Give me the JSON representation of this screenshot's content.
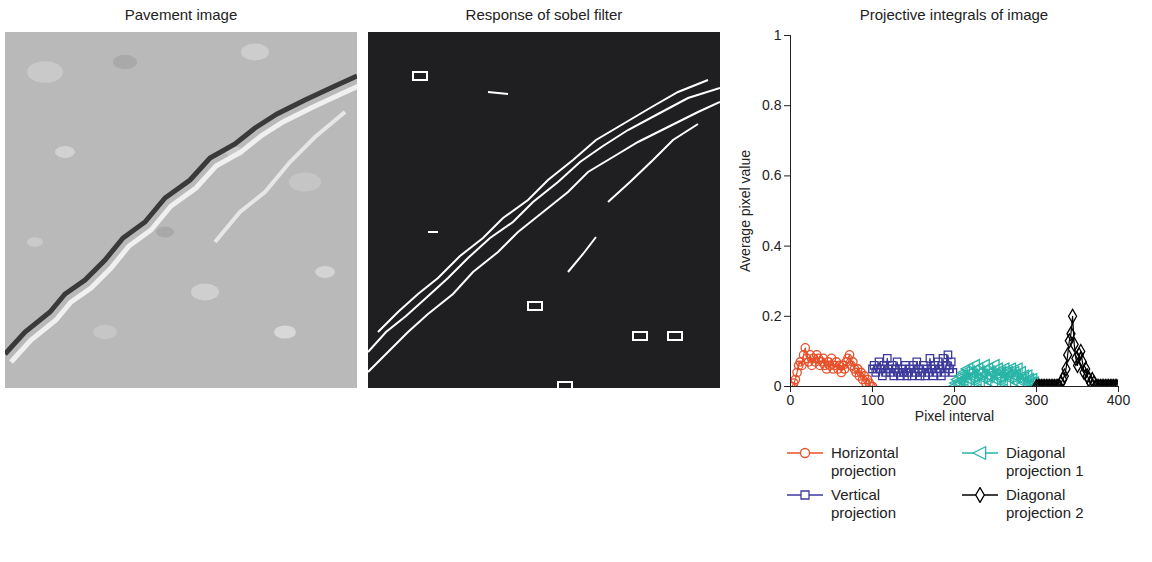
{
  "images": [
    {
      "title": "Pavement image"
    },
    {
      "title": "Response of sobel filter"
    }
  ],
  "chart_data": {
    "type": "line",
    "title": "Projective integrals of image",
    "x_label": "Pixel interval",
    "y_label": "Average pixel value",
    "xlim": [
      0,
      400
    ],
    "xticks": [
      0,
      100,
      200,
      300,
      400
    ],
    "ylim": [
      0,
      1
    ],
    "yticks": [
      0,
      0.2,
      0.4,
      0.6,
      0.8,
      1
    ],
    "legend": "bottom",
    "series": [
      {
        "name": "Horizontal projection",
        "color": "#e8502a",
        "marker": "circle",
        "line_style": "solid",
        "x": [
          0,
          2,
          4,
          6,
          8,
          10,
          12,
          14,
          16,
          18,
          20,
          22,
          24,
          26,
          28,
          30,
          32,
          34,
          36,
          38,
          40,
          42,
          44,
          46,
          48,
          50,
          52,
          54,
          56,
          58,
          60,
          62,
          64,
          66,
          68,
          70,
          72,
          74,
          76,
          78,
          80,
          82,
          84,
          86,
          88,
          90,
          92,
          94,
          96,
          98,
          100
        ],
        "values": [
          0,
          0,
          0.01,
          0.02,
          0.04,
          0.06,
          0.07,
          0.06,
          0.09,
          0.11,
          0.08,
          0.07,
          0.09,
          0.06,
          0.08,
          0.07,
          0.09,
          0.08,
          0.06,
          0.07,
          0.08,
          0.06,
          0.05,
          0.07,
          0.06,
          0.08,
          0.05,
          0.06,
          0.07,
          0.05,
          0.06,
          0.04,
          0.06,
          0.05,
          0.07,
          0.08,
          0.09,
          0.06,
          0.07,
          0.05,
          0.04,
          0.05,
          0.03,
          0.04,
          0.02,
          0.03,
          0.01,
          0.02,
          0.01,
          0,
          0
        ]
      },
      {
        "name": "Vertical projection",
        "color": "#3d3a9e",
        "marker": "square",
        "line_style": "solid",
        "x": [
          100,
          102,
          104,
          106,
          108,
          110,
          112,
          114,
          116,
          118,
          120,
          122,
          124,
          126,
          128,
          130,
          132,
          134,
          136,
          138,
          140,
          142,
          144,
          146,
          148,
          150,
          152,
          154,
          156,
          158,
          160,
          162,
          164,
          166,
          168,
          170,
          172,
          174,
          176,
          178,
          180,
          182,
          184,
          186,
          188,
          190,
          192,
          194,
          196,
          198
        ],
        "values": [
          0.05,
          0.06,
          0.04,
          0.05,
          0.07,
          0.05,
          0.03,
          0.06,
          0.04,
          0.08,
          0.05,
          0.04,
          0.06,
          0.03,
          0.05,
          0.07,
          0.04,
          0.03,
          0.05,
          0.04,
          0.06,
          0.03,
          0.04,
          0.05,
          0.03,
          0.06,
          0.04,
          0.07,
          0.05,
          0.03,
          0.04,
          0.06,
          0.03,
          0.05,
          0.04,
          0.08,
          0.05,
          0.03,
          0.06,
          0.04,
          0.07,
          0.05,
          0.03,
          0.08,
          0.04,
          0.06,
          0.09,
          0.05,
          0.07,
          0.04
        ]
      },
      {
        "name": "Diagonal projection 1",
        "color": "#29b5a7",
        "marker": "triangle-left",
        "line_style": "solid",
        "x": [
          200,
          202,
          204,
          206,
          208,
          210,
          212,
          214,
          216,
          218,
          220,
          222,
          224,
          226,
          228,
          230,
          232,
          234,
          236,
          238,
          240,
          242,
          244,
          246,
          248,
          250,
          252,
          254,
          256,
          258,
          260,
          262,
          264,
          266,
          268,
          270,
          272,
          274,
          276,
          278,
          280,
          282,
          284,
          286,
          288,
          290,
          292,
          294,
          296,
          298
        ],
        "values": [
          0,
          0.01,
          0.02,
          0.01,
          0.03,
          0.02,
          0.04,
          0.01,
          0.05,
          0.02,
          0.04,
          0.03,
          0.06,
          0.02,
          0.05,
          0.01,
          0.04,
          0.03,
          0.06,
          0.02,
          0.05,
          0.03,
          0.04,
          0.01,
          0.06,
          0.02,
          0.05,
          0.03,
          0.04,
          0.02,
          0.05,
          0.01,
          0.04,
          0.03,
          0.05,
          0.02,
          0.04,
          0.03,
          0.05,
          0.01,
          0.04,
          0.02,
          0.03,
          0.01,
          0.03,
          0.02,
          0.01,
          0.02,
          0.01,
          0
        ]
      },
      {
        "name": "Diagonal projection 2",
        "color": "#000000",
        "marker": "diamond",
        "line_style": "solid",
        "x": [
          300,
          302,
          304,
          306,
          308,
          310,
          312,
          314,
          316,
          318,
          320,
          322,
          324,
          326,
          328,
          330,
          332,
          334,
          336,
          338,
          340,
          342,
          344,
          346,
          348,
          350,
          352,
          354,
          356,
          358,
          360,
          362,
          364,
          366,
          368,
          370,
          372,
          374,
          376,
          378,
          380,
          382,
          384,
          386,
          388,
          390,
          392,
          394,
          396,
          398,
          400
        ],
        "values": [
          0,
          0,
          0,
          0,
          0,
          0,
          0,
          0,
          0,
          0,
          0,
          0,
          0,
          0,
          0,
          0.01,
          0.02,
          0.03,
          0.05,
          0.09,
          0.13,
          0.15,
          0.2,
          0.12,
          0.08,
          0.06,
          0.09,
          0.1,
          0.07,
          0.04,
          0.05,
          0.03,
          0.02,
          0.01,
          0.02,
          0.01,
          0,
          0,
          0,
          0,
          0,
          0,
          0,
          0,
          0,
          0,
          0,
          0,
          0,
          0,
          0
        ]
      }
    ]
  }
}
